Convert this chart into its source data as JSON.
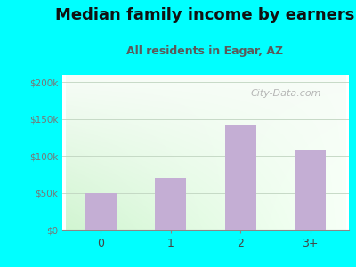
{
  "categories": [
    "0",
    "1",
    "2",
    "3+"
  ],
  "values": [
    50000,
    70000,
    143000,
    107000
  ],
  "bar_color": "#c4aed4",
  "title": "Median family income by earners",
  "subtitle": "All residents in Eagar, AZ",
  "title_color": "#111111",
  "subtitle_color": "#5a5a5a",
  "outer_bg_color": "#00ffff",
  "yticks": [
    0,
    50000,
    100000,
    150000,
    200000
  ],
  "ytick_labels": [
    "$0",
    "$50k",
    "$100k",
    "$150k",
    "$200k"
  ],
  "ylim": [
    0,
    210000
  ],
  "watermark": "City-Data.com",
  "title_fontsize": 13,
  "subtitle_fontsize": 9,
  "watermark_fontsize": 8
}
